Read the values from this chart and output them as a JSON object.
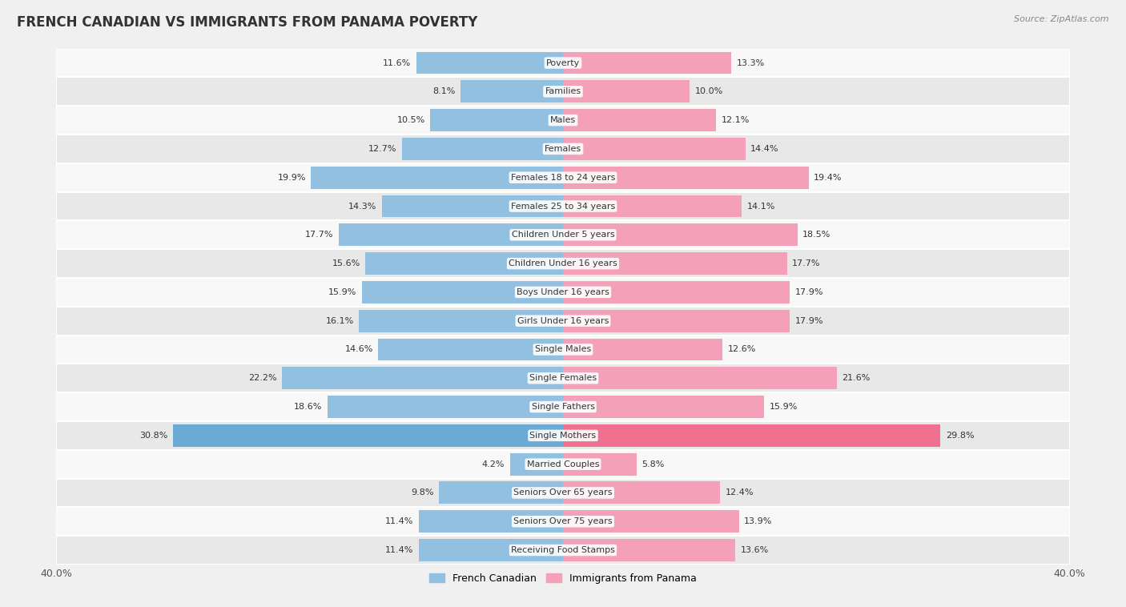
{
  "title": "FRENCH CANADIAN VS IMMIGRANTS FROM PANAMA POVERTY",
  "source": "Source: ZipAtlas.com",
  "categories": [
    "Poverty",
    "Families",
    "Males",
    "Females",
    "Females 18 to 24 years",
    "Females 25 to 34 years",
    "Children Under 5 years",
    "Children Under 16 years",
    "Boys Under 16 years",
    "Girls Under 16 years",
    "Single Males",
    "Single Females",
    "Single Fathers",
    "Single Mothers",
    "Married Couples",
    "Seniors Over 65 years",
    "Seniors Over 75 years",
    "Receiving Food Stamps"
  ],
  "french_canadian": [
    11.6,
    8.1,
    10.5,
    12.7,
    19.9,
    14.3,
    17.7,
    15.6,
    15.9,
    16.1,
    14.6,
    22.2,
    18.6,
    30.8,
    4.2,
    9.8,
    11.4,
    11.4
  ],
  "immigrants_panama": [
    13.3,
    10.0,
    12.1,
    14.4,
    19.4,
    14.1,
    18.5,
    17.7,
    17.9,
    17.9,
    12.6,
    21.6,
    15.9,
    29.8,
    5.8,
    12.4,
    13.9,
    13.6
  ],
  "color_french": "#92c0e0",
  "color_panama": "#f4a0b8",
  "color_single_mothers_french": "#6aaad4",
  "color_single_mothers_panama": "#f07090",
  "xlim": 40.0,
  "bar_height": 0.78,
  "bg_color": "#f0f0f0",
  "row_color_even": "#f8f8f8",
  "row_color_odd": "#e8e8e8",
  "title_fontsize": 12,
  "label_fontsize": 8,
  "value_fontsize": 8,
  "legend_fontsize": 9,
  "source_fontsize": 8
}
